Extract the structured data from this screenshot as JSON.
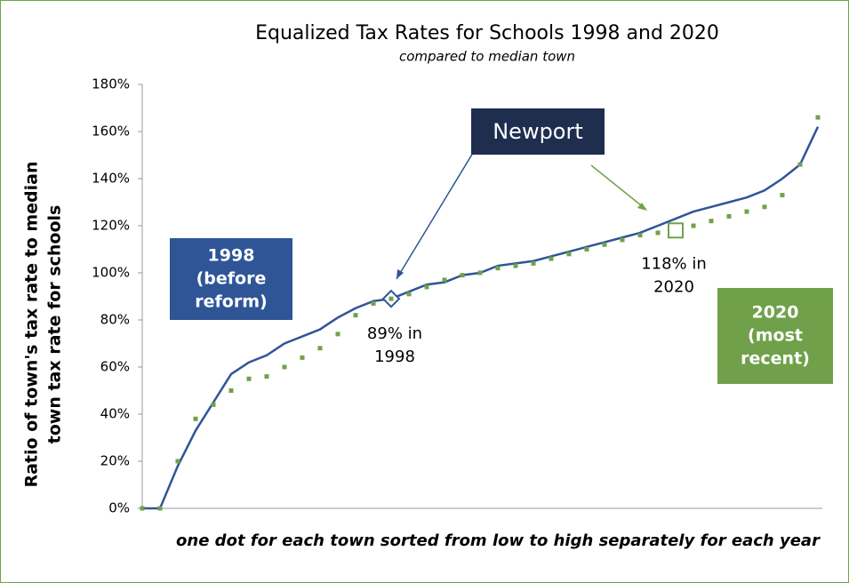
{
  "chart_data": {
    "type": "line",
    "title": "Equalized Tax Rates for Schools 1998 and 2020",
    "subtitle": "compared to median town",
    "y_label": [
      "Ratio of town's tax rate to median",
      "town tax rate for schools"
    ],
    "x_label": "one dot for each town sorted from low to high separately for each year",
    "ylim": [
      0,
      180
    ],
    "yticks": [
      {
        "value": 0,
        "label": "0%"
      },
      {
        "value": 20,
        "label": "20%"
      },
      {
        "value": 40,
        "label": "40%"
      },
      {
        "value": 60,
        "label": "60%"
      },
      {
        "value": 80,
        "label": "80%"
      },
      {
        "value": 100,
        "label": "100%"
      },
      {
        "value": 120,
        "label": "120%"
      },
      {
        "value": 140,
        "label": "140%"
      },
      {
        "value": 160,
        "label": "160%"
      },
      {
        "value": 180,
        "label": "180%"
      }
    ],
    "series": [
      {
        "name": [
          "1998",
          "(before",
          "reform)"
        ],
        "color": "#2f5597",
        "values": [
          0,
          0,
          18,
          33,
          45,
          57,
          62,
          65,
          70,
          73,
          76,
          81,
          85,
          88,
          89,
          92,
          95,
          96,
          99,
          100,
          103,
          104,
          105,
          107,
          109,
          111,
          113,
          115,
          117,
          120,
          123,
          126,
          128,
          130,
          132,
          135,
          140,
          146,
          162
        ],
        "highlight": 14,
        "highlight_label": [
          "89% in",
          "1998"
        ]
      },
      {
        "name": [
          "2020",
          "(most",
          "recent)"
        ],
        "color": "#70a14a",
        "values": [
          0,
          0,
          20,
          38,
          44,
          50,
          55,
          56,
          60,
          64,
          68,
          74,
          82,
          87,
          89,
          91,
          94,
          97,
          99,
          100,
          102,
          103,
          104,
          106,
          108,
          110,
          112,
          114,
          116,
          117,
          118,
          120,
          122,
          124,
          126,
          128,
          133,
          146,
          166
        ],
        "highlight": 30,
        "highlight_label": [
          "118% in",
          "2020"
        ]
      }
    ],
    "annotation": "Newport"
  }
}
